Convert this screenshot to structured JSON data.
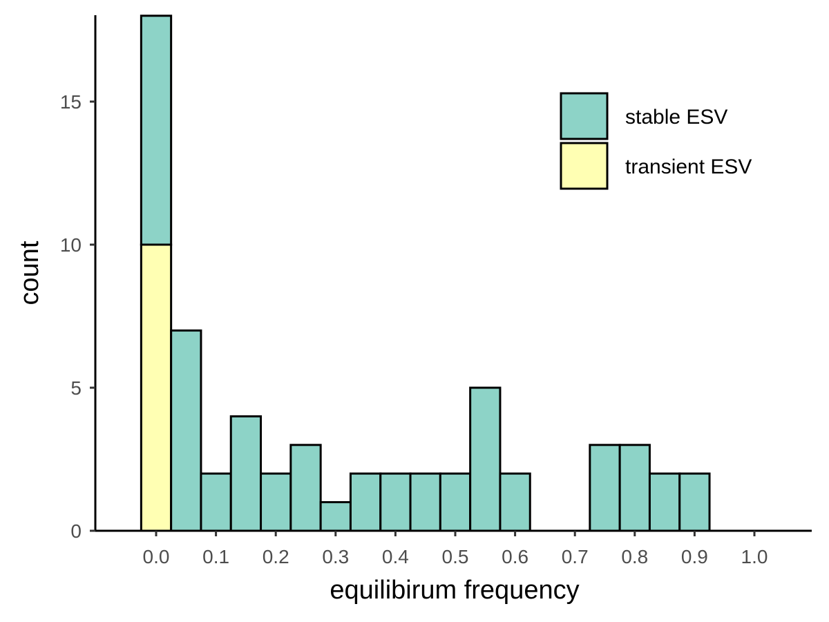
{
  "chart_data": {
    "type": "bar",
    "title": "",
    "xlabel": "equilibirum frequency",
    "ylabel": "count",
    "x_ticks": [
      "0.0",
      "0.1",
      "0.2",
      "0.3",
      "0.4",
      "0.5",
      "0.6",
      "0.7",
      "0.8",
      "0.9",
      "1.0"
    ],
    "y_ticks": [
      "0",
      "5",
      "10",
      "15"
    ],
    "xlim": [
      -0.1,
      1.1
    ],
    "ylim": [
      0,
      18
    ],
    "bin_width": 0.05,
    "bin_centers": [
      0.0,
      0.05,
      0.1,
      0.15,
      0.2,
      0.25,
      0.3,
      0.35,
      0.4,
      0.45,
      0.5,
      0.55,
      0.6,
      0.65,
      0.7,
      0.75,
      0.8,
      0.85,
      0.9
    ],
    "stacked": true,
    "series": [
      {
        "name": "transient ESV",
        "color": "#FFFFB3",
        "values": [
          10,
          0,
          0,
          0,
          0,
          0,
          0,
          0,
          0,
          0,
          0,
          0,
          0,
          0,
          0,
          0,
          0,
          0,
          0
        ]
      },
      {
        "name": "stable ESV",
        "color": "#8DD3C7",
        "values": [
          8,
          7,
          2,
          4,
          2,
          3,
          1,
          2,
          2,
          2,
          2,
          5,
          2,
          0,
          0,
          3,
          3,
          2,
          2
        ]
      }
    ],
    "legend": {
      "position": "top-right",
      "order": [
        "stable ESV",
        "transient ESV"
      ]
    },
    "grid": false
  }
}
